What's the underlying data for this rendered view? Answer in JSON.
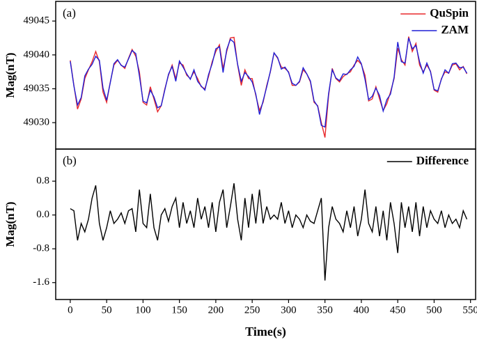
{
  "chart_data": [
    {
      "type": "line",
      "annotation": "(a)",
      "ylabel": "Mag(nT)",
      "legend": "upper right",
      "xlim": [
        -20,
        557
      ],
      "ylim": [
        49026.1,
        49047.9
      ],
      "yticks": [
        49030,
        49035,
        49040,
        49045
      ],
      "x": [
        0,
        5,
        10,
        15,
        20,
        25,
        30,
        35,
        40,
        45,
        50,
        55,
        60,
        65,
        70,
        75,
        80,
        85,
        90,
        95,
        100,
        105,
        110,
        115,
        120,
        125,
        130,
        135,
        140,
        145,
        150,
        155,
        160,
        165,
        170,
        175,
        180,
        185,
        190,
        195,
        200,
        205,
        210,
        215,
        220,
        225,
        230,
        235,
        240,
        245,
        250,
        255,
        260,
        265,
        270,
        275,
        280,
        285,
        290,
        295,
        300,
        305,
        310,
        315,
        320,
        325,
        330,
        335,
        340,
        345,
        350,
        355,
        360,
        365,
        370,
        375,
        380,
        385,
        390,
        395,
        400,
        405,
        410,
        415,
        420,
        425,
        430,
        435,
        440,
        445,
        450,
        455,
        460,
        465,
        470,
        475,
        480,
        485,
        490,
        495,
        500,
        505,
        510,
        515,
        520,
        525,
        530,
        535,
        540,
        545
      ],
      "series": [
        {
          "name": "QuSpin",
          "color": "#e8282b",
          "values": [
            49039.2,
            49035.5,
            49032.0,
            49033.5,
            49036.5,
            49037.8,
            49039.0,
            49040.5,
            49039.0,
            49034.5,
            49033.0,
            49036.0,
            49038.5,
            49039.2,
            49038.5,
            49038.0,
            49039.5,
            49040.8,
            49039.8,
            49037.5,
            49033.0,
            49032.6,
            49035.3,
            49033.5,
            49031.6,
            49032.5,
            49035.0,
            49037.0,
            49038.5,
            49036.5,
            49038.8,
            49038.5,
            49037.0,
            49036.5,
            49037.5,
            49036.5,
            49035.3,
            49035.0,
            49036.8,
            49039.0,
            49040.5,
            49041.5,
            49038.0,
            49040.5,
            49042.5,
            49042.6,
            49038.5,
            49035.5,
            49037.8,
            49036.5,
            49036.5,
            49034.0,
            49031.8,
            49033.0,
            49035.5,
            49037.5,
            49040.3,
            49039.5,
            49038.2,
            49038.0,
            49037.5,
            49035.5,
            49035.5,
            49036.0,
            49037.8,
            49037.2,
            49036.0,
            49033.0,
            49032.5,
            49030.0,
            49027.8,
            49034.0,
            49038.0,
            49036.5,
            49036.0,
            49036.8,
            49037.2,
            49037.5,
            49038.5,
            49039.2,
            49038.6,
            49037.0,
            49033.2,
            49033.5,
            49035.3,
            49033.5,
            49031.8,
            49032.8,
            49034.5,
            49036.5,
            49041.0,
            49039.3,
            49038.5,
            49042.7,
            49040.5,
            49041.7,
            49038.5,
            49037.5,
            49038.5,
            49037.6,
            49034.8,
            49034.5,
            49036.5,
            49037.5,
            49037.3,
            49038.5,
            49038.7,
            49037.8,
            49038.3,
            49037.2
          ]
        },
        {
          "name": "ZAM",
          "color": "#1f1fd6",
          "values": [
            49039.05,
            49035.4,
            49032.6,
            49033.7,
            49036.9,
            49037.9,
            49038.6,
            49039.8,
            49039.2,
            49035.1,
            49033.3,
            49035.9,
            49038.7,
            49039.3,
            49038.45,
            49038.2,
            49039.4,
            49040.65,
            49040.2,
            49036.9,
            49033.2,
            49032.9,
            49034.8,
            49033.8,
            49032.2,
            49032.5,
            49034.85,
            49037.15,
            49038.3,
            49036.1,
            49039.1,
            49038.2,
            49037.2,
            49036.4,
            49037.8,
            49036.1,
            49035.4,
            49034.8,
            49037.1,
            49038.7,
            49040.9,
            49041.2,
            49037.4,
            49040.8,
            49042.3,
            49041.85,
            49038.6,
            49036.1,
            49037.4,
            49036.8,
            49036.0,
            49034.2,
            49031.2,
            49033.2,
            49035.3,
            49037.6,
            49040.3,
            49039.6,
            49037.9,
            49038.2,
            49037.4,
            49035.8,
            49035.5,
            49036.1,
            49038.1,
            49037.2,
            49036.15,
            49033.2,
            49032.4,
            49029.6,
            49029.35,
            49034.3,
            49037.8,
            49036.6,
            49036.2,
            49037.2,
            49037.1,
            49037.8,
            49038.3,
            49039.7,
            49038.7,
            49036.4,
            49033.4,
            49033.9,
            49035.1,
            49034.0,
            49031.7,
            49033.4,
            49034.2,
            49036.7,
            49041.9,
            49039.0,
            49038.8,
            49042.5,
            49040.9,
            49041.4,
            49039.0,
            49037.3,
            49038.8,
            49037.5,
            49034.9,
            49034.7,
            49036.4,
            49037.8,
            49037.3,
            49038.7,
            49038.8,
            49038.1,
            49038.2,
            49037.3
          ]
        }
      ]
    },
    {
      "type": "line",
      "annotation": "(b)",
      "ylabel": "Mag(nT)",
      "xlabel": "Time(s)",
      "legend": "upper right",
      "xlim": [
        -20,
        557
      ],
      "ylim": [
        -2.0,
        1.56
      ],
      "yticks": [
        -1.6,
        -0.8,
        {
          "value": 0,
          "label": "0.0"
        },
        0.8
      ],
      "xticks": [
        0,
        50,
        100,
        150,
        200,
        250,
        300,
        350,
        400,
        450,
        500,
        550
      ],
      "x": [
        0,
        5,
        10,
        15,
        20,
        25,
        30,
        35,
        40,
        45,
        50,
        55,
        60,
        65,
        70,
        75,
        80,
        85,
        90,
        95,
        100,
        105,
        110,
        115,
        120,
        125,
        130,
        135,
        140,
        145,
        150,
        155,
        160,
        165,
        170,
        175,
        180,
        185,
        190,
        195,
        200,
        205,
        210,
        215,
        220,
        225,
        230,
        235,
        240,
        245,
        250,
        255,
        260,
        265,
        270,
        275,
        280,
        285,
        290,
        295,
        300,
        305,
        310,
        315,
        320,
        325,
        330,
        335,
        340,
        345,
        350,
        355,
        360,
        365,
        370,
        375,
        380,
        385,
        390,
        395,
        400,
        405,
        410,
        415,
        420,
        425,
        430,
        435,
        440,
        445,
        450,
        455,
        460,
        465,
        470,
        475,
        480,
        485,
        490,
        495,
        500,
        505,
        510,
        515,
        520,
        525,
        530,
        535,
        540,
        545
      ],
      "series": [
        {
          "name": "Difference",
          "color": "#000000",
          "values": [
            0.15,
            0.1,
            -0.6,
            -0.2,
            -0.4,
            -0.1,
            0.4,
            0.7,
            -0.2,
            -0.6,
            -0.3,
            0.1,
            -0.2,
            -0.1,
            0.05,
            -0.2,
            0.1,
            0.15,
            -0.4,
            0.6,
            -0.2,
            -0.3,
            0.5,
            -0.3,
            -0.6,
            0.0,
            0.15,
            -0.15,
            0.2,
            0.4,
            -0.3,
            0.3,
            -0.2,
            0.1,
            -0.3,
            0.4,
            -0.1,
            0.2,
            -0.3,
            0.3,
            -0.4,
            0.3,
            0.6,
            -0.3,
            0.2,
            0.75,
            -0.1,
            -0.6,
            0.4,
            -0.3,
            0.5,
            -0.2,
            0.6,
            -0.2,
            0.2,
            -0.1,
            0.0,
            -0.1,
            0.3,
            -0.2,
            0.1,
            -0.3,
            0.0,
            -0.1,
            -0.3,
            0.0,
            -0.15,
            -0.2,
            0.1,
            0.4,
            -1.55,
            -0.3,
            0.2,
            -0.1,
            -0.2,
            -0.4,
            0.1,
            -0.3,
            0.2,
            -0.5,
            -0.1,
            0.6,
            -0.2,
            -0.4,
            0.2,
            -0.5,
            0.1,
            -0.6,
            0.3,
            -0.2,
            -0.9,
            0.3,
            -0.3,
            0.2,
            -0.4,
            0.3,
            -0.5,
            0.2,
            -0.3,
            0.1,
            -0.1,
            -0.2,
            0.1,
            -0.3,
            0.0,
            -0.2,
            -0.1,
            -0.3,
            0.1,
            -0.1
          ]
        }
      ]
    }
  ]
}
